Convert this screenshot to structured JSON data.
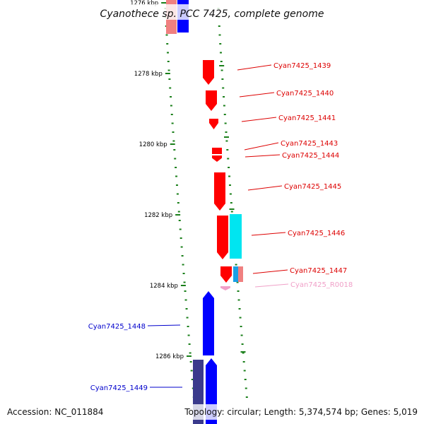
{
  "title": "Cyanothece sp. PCC 7425, complete genome",
  "footer": {
    "accession": "Accession: NC_011884",
    "summary": "Topology: circular; Length: 5,374,574 bp; Genes: 5,019"
  },
  "colors": {
    "forward_gene": "#ff0000",
    "forward_gene_pale": "#f08080",
    "reverse_gene": "#0000ff",
    "reverse_gene_dark": "#3a3a8c",
    "cds_cyan": "#00e5f0",
    "rna_pink": "#f0a0c8",
    "tick_green": "#1a7f1a",
    "backbone": "#888888"
  },
  "scale_labels": [
    {
      "label": "1276 kbp",
      "kbp": 1276
    },
    {
      "label": "1278 kbp",
      "kbp": 1278
    },
    {
      "label": "1280 kbp",
      "kbp": 1280
    },
    {
      "label": "1282 kbp",
      "kbp": 1282
    },
    {
      "label": "1284 kbp",
      "kbp": 1284
    },
    {
      "label": "1286 kbp",
      "kbp": 1286
    }
  ],
  "features": [
    {
      "id": "Cyan7425_1439",
      "strand": "+",
      "start_kbp": 1278.1,
      "end_kbp": 1278.9,
      "color_key": "forward_gene",
      "labeled": true
    },
    {
      "id": "Cyan7425_1440",
      "strand": "+",
      "start_kbp": 1278.5,
      "end_kbp": 1279.2,
      "color_key": "forward_gene",
      "labeled": true
    },
    {
      "id": "Cyan7425_1441",
      "strand": "+",
      "start_kbp": 1279.3,
      "end_kbp": 1279.6,
      "color_key": "forward_gene",
      "labeled": true
    },
    {
      "id": "Cyan7425_1443",
      "strand": "+",
      "start_kbp": 1280.05,
      "end_kbp": 1280.3,
      "color_key": "forward_gene",
      "labeled": true
    },
    {
      "id": "Cyan7425_1444",
      "strand": "+",
      "start_kbp": 1280.3,
      "end_kbp": 1280.5,
      "color_key": "forward_gene",
      "labeled": true
    },
    {
      "id": "Cyan7425_1445",
      "strand": "+",
      "start_kbp": 1280.8,
      "end_kbp": 1281.9,
      "color_key": "forward_gene",
      "labeled": true
    },
    {
      "id": "Cyan7425_1446",
      "strand": "+",
      "start_kbp": 1282.0,
      "end_kbp": 1283.3,
      "color_key": "forward_gene",
      "labeled": true
    },
    {
      "id": "Cyan7425_1447",
      "strand": "+",
      "start_kbp": 1283.4,
      "end_kbp": 1283.9,
      "color_key": "forward_gene",
      "labeled": true
    },
    {
      "id": "Cyan7425_R0018",
      "strand": "+",
      "start_kbp": 1284.0,
      "end_kbp": 1284.1,
      "color_key": "rna_pink",
      "labeled": true
    },
    {
      "id": "Cyan7425_1448",
      "strand": "-",
      "start_kbp": 1284.2,
      "end_kbp": 1286.0,
      "color_key": "reverse_gene",
      "labeled": true
    },
    {
      "id": "Cyan7425_1449",
      "strand": "-",
      "start_kbp": 1286.05,
      "end_kbp": 1287.9,
      "color_key": "reverse_gene",
      "labeled": true
    }
  ]
}
